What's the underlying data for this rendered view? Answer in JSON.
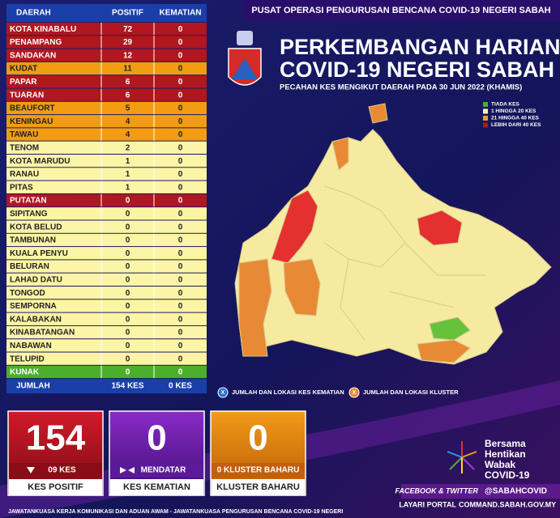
{
  "header": {
    "banner": "PUSAT OPERASI PENGURUSAN BENCANA COVID-19 NEGERI SABAH",
    "title_lines": [
      "PERKEMBANGAN HARIAN",
      "COVID-19 NEGERI SABAH"
    ],
    "subtitle": "PECAHAN KES MENGIKUT DAERAH PADA 30 JUN 2022 (KHAMIS)"
  },
  "legend": [
    {
      "label": "TIADA KES",
      "color": "#4caf2a"
    },
    {
      "label": "1 HINGGA 20 KES",
      "color": "#fdf5a6"
    },
    {
      "label": "21 HINGGA 40 KES",
      "color": "#f39c12"
    },
    {
      "label": "LEBIH DARI 40 KES",
      "color": "#b0171f"
    }
  ],
  "table": {
    "headers": [
      "DAERAH",
      "POSITIF",
      "KEMATIAN"
    ],
    "rows": [
      [
        "KOTA KINABALU",
        72,
        0
      ],
      [
        "PENAMPANG",
        29,
        0
      ],
      [
        "SANDAKAN",
        12,
        0
      ],
      [
        "KUDAT",
        11,
        0
      ],
      [
        "PAPAR",
        6,
        0
      ],
      [
        "TUARAN",
        6,
        0
      ],
      [
        "BEAUFORT",
        5,
        0
      ],
      [
        "KENINGAU",
        4,
        0
      ],
      [
        "TAWAU",
        4,
        0
      ],
      [
        "TENOM",
        2,
        0
      ],
      [
        "KOTA MARUDU",
        1,
        0
      ],
      [
        "RANAU",
        1,
        0
      ],
      [
        "PITAS",
        1,
        0
      ],
      [
        "PUTATAN",
        0,
        0
      ],
      [
        "SIPITANG",
        0,
        0
      ],
      [
        "KOTA BELUD",
        0,
        0
      ],
      [
        "TAMBUNAN",
        0,
        0
      ],
      [
        "KUALA PENYU",
        0,
        0
      ],
      [
        "BELURAN",
        0,
        0
      ],
      [
        "LAHAD DATU",
        0,
        0
      ],
      [
        "TONGOD",
        0,
        0
      ],
      [
        "SEMPORNA",
        0,
        0
      ],
      [
        "KALABAKAN",
        0,
        0
      ],
      [
        "KINABATANGAN",
        0,
        0
      ],
      [
        "NABAWAN",
        0,
        0
      ],
      [
        "TELUPID",
        0,
        0
      ],
      [
        "KUNAK",
        0,
        0
      ]
    ],
    "row_colors": [
      "#b0171f",
      "#b0171f",
      "#b0171f",
      "#f39c12",
      "#b0171f",
      "#b0171f",
      "#f39c12",
      "#f39c12",
      "#f39c12",
      "#fdf5a6",
      "#fdf5a6",
      "#fdf5a6",
      "#fdf5a6",
      "#b0171f",
      "#fdf5a6",
      "#fdf5a6",
      "#fdf5a6",
      "#fdf5a6",
      "#fdf5a6",
      "#fdf5a6",
      "#fdf5a6",
      "#fdf5a6",
      "#fdf5a6",
      "#fdf5a6",
      "#fdf5a6",
      "#fdf5a6",
      "#4caf2a"
    ],
    "total": [
      "JUMLAH",
      "154 KES",
      "0 KES"
    ]
  },
  "map_notes": [
    {
      "icon": "X",
      "label": "JUMLAH DAN LOKASI KES KEMATIAN"
    },
    {
      "icon": "X",
      "label": "JUMLAH DAN LOKASI KLUSTER"
    }
  ],
  "stats": [
    {
      "value": 154,
      "change": "09 KES",
      "label": "KES POSITIF"
    },
    {
      "value": 0,
      "change": "MENDATAR",
      "label": "KES KEMATIAN"
    },
    {
      "value": 0,
      "change": "0 KLUSTER BAHARU",
      "label": "KLUSTER BAHARU"
    }
  ],
  "campaign": [
    "Bersama",
    "Hentikan",
    "Wabak",
    "COVID-19"
  ],
  "footer": {
    "social": "FACEBOOK & TWITTER",
    "handle": "@SABAHCOVID",
    "portal": "LAYARI PORTAL",
    "url": "COMMAND.SABAH.GOV.MY",
    "committee": "JAWATANKUASA KERJA KOMUNIKASI DAN ADUAN AWAM - JAWATANKUASA PENGURUSAN BENCANA COVID-19 NEGERI"
  }
}
